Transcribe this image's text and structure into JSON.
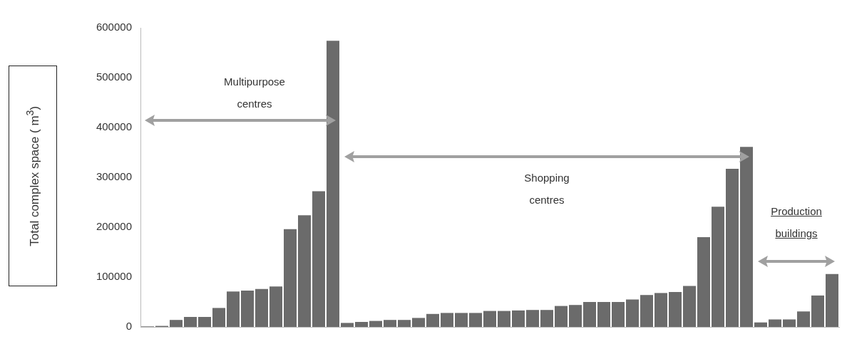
{
  "chart_data": {
    "type": "bar",
    "ylabel": "Total complex space ( m$^{3}$)",
    "categories": [
      null,
      null,
      null,
      null,
      null,
      null,
      null,
      null,
      null,
      null,
      null,
      null,
      null,
      null,
      null,
      null,
      null,
      null,
      null,
      null,
      null,
      null,
      null,
      null,
      null,
      null,
      null,
      null,
      null,
      null,
      null,
      null,
      null,
      null,
      null,
      null,
      null,
      null,
      null,
      null,
      null,
      null,
      null,
      null,
      null,
      null,
      null,
      null,
      null
    ],
    "values": [
      1000,
      2000,
      14000,
      20000,
      20000,
      38000,
      71000,
      73000,
      76000,
      81000,
      196000,
      224000,
      272000,
      574000,
      8000,
      10000,
      12000,
      14000,
      14000,
      18000,
      26000,
      28000,
      28000,
      28000,
      32000,
      32000,
      33000,
      34000,
      34000,
      42000,
      44000,
      50000,
      50000,
      50000,
      55000,
      64000,
      68000,
      70000,
      82000,
      180000,
      241000,
      317000,
      361000,
      9000,
      15000,
      15000,
      31000,
      63000,
      106000
    ],
    "color": "#6b6b6b",
    "ylim": [
      0,
      600000
    ],
    "yticks": [
      0,
      100000,
      200000,
      300000,
      400000,
      500000,
      600000
    ],
    "grid": false,
    "legend": false,
    "tick_labels": "y",
    "annotations": [
      "Multipurpose centres",
      "Shopping centres",
      "Production buildings"
    ]
  }
}
